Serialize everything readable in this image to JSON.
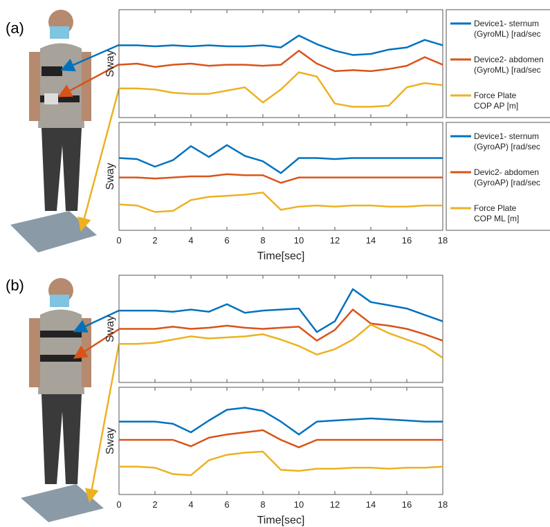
{
  "panel_labels": [
    "(a)",
    "(b)"
  ],
  "chart_data": [
    {
      "type": "line",
      "ylabel": "Sway",
      "x": [
        0,
        1,
        2,
        3,
        4,
        5,
        6,
        7,
        8,
        9,
        10,
        11,
        12,
        13,
        14,
        15,
        16,
        17,
        18
      ],
      "xlim": [
        0,
        18
      ],
      "ylim": [
        0,
        10
      ],
      "xticks": [
        0,
        2,
        4,
        6,
        8,
        10,
        12,
        14,
        16,
        18
      ],
      "xtick_labels": false,
      "series": [
        {
          "name": "Device1- sternum",
          "unit": "(GyroML) [rad/sec",
          "color": "#0072bd",
          "values": [
            6.7,
            6.7,
            6.6,
            6.7,
            6.6,
            6.7,
            6.6,
            6.6,
            6.7,
            6.5,
            7.6,
            6.8,
            6.2,
            5.8,
            5.9,
            6.3,
            6.5,
            7.2,
            6.7
          ]
        },
        {
          "name": "Device2- abdomen",
          "unit": "(GyroML) [rad/sec",
          "color": "#d95319",
          "values": [
            4.9,
            5.0,
            4.7,
            4.9,
            5.0,
            4.8,
            4.9,
            4.9,
            4.8,
            4.9,
            6.2,
            5.0,
            4.3,
            4.4,
            4.3,
            4.5,
            4.8,
            5.6,
            4.9
          ]
        },
        {
          "name": "Force Plate",
          "unit": "COP AP [m]",
          "color": "#edb120",
          "values": [
            2.7,
            2.7,
            2.6,
            2.3,
            2.2,
            2.2,
            2.5,
            2.8,
            1.4,
            2.6,
            4.2,
            3.8,
            1.3,
            1.0,
            1.0,
            1.1,
            2.8,
            3.2,
            3.0
          ]
        }
      ],
      "legend": true
    },
    {
      "type": "line",
      "ylabel": "Sway",
      "xlabel": "Time[sec]",
      "x": [
        0,
        1,
        2,
        3,
        4,
        5,
        6,
        7,
        8,
        9,
        10,
        11,
        12,
        13,
        14,
        15,
        16,
        17,
        18
      ],
      "xlim": [
        0,
        18
      ],
      "ylim": [
        0,
        10
      ],
      "xticks": [
        0,
        2,
        4,
        6,
        8,
        10,
        12,
        14,
        16,
        18
      ],
      "xtick_labels": true,
      "series": [
        {
          "name": "Device1- sternum",
          "unit": "(GyroAP) [rad/sec",
          "color": "#0072bd",
          "values": [
            6.7,
            6.6,
            5.9,
            6.5,
            7.8,
            6.8,
            7.9,
            6.9,
            6.4,
            5.3,
            6.7,
            6.7,
            6.6,
            6.7,
            6.7,
            6.7,
            6.7,
            6.7,
            6.7
          ]
        },
        {
          "name": "Devic2- abdomen",
          "unit": "(GyroAP) [rad/sec",
          "color": "#d95319",
          "values": [
            4.9,
            4.9,
            4.8,
            4.9,
            5.0,
            5.0,
            5.2,
            5.1,
            5.1,
            4.4,
            4.9,
            4.9,
            4.9,
            4.9,
            4.9,
            4.9,
            4.9,
            4.9,
            4.9
          ]
        },
        {
          "name": "Force Plate",
          "unit": "COP ML [m]",
          "color": "#edb120",
          "values": [
            2.4,
            2.3,
            1.7,
            1.8,
            2.8,
            3.1,
            3.2,
            3.3,
            3.5,
            1.9,
            2.2,
            2.3,
            2.2,
            2.3,
            2.3,
            2.2,
            2.2,
            2.3,
            2.3
          ]
        }
      ],
      "legend": true
    },
    {
      "type": "line",
      "ylabel": "Sway",
      "x": [
        0,
        1,
        2,
        3,
        4,
        5,
        6,
        7,
        8,
        9,
        10,
        11,
        12,
        13,
        14,
        15,
        16,
        17,
        18
      ],
      "xlim": [
        0,
        18
      ],
      "ylim": [
        0,
        10
      ],
      "xticks": [
        0,
        2,
        4,
        6,
        8,
        10,
        12,
        14,
        16,
        18
      ],
      "xtick_labels": false,
      "series": [
        {
          "color": "#0072bd",
          "values": [
            6.7,
            6.7,
            6.7,
            6.6,
            6.8,
            6.6,
            7.3,
            6.5,
            6.7,
            6.8,
            6.9,
            4.7,
            5.7,
            8.7,
            7.5,
            7.2,
            6.9,
            6.3,
            5.7
          ]
        },
        {
          "color": "#d95319",
          "values": [
            5.0,
            5.0,
            5.0,
            5.2,
            5.0,
            5.1,
            5.3,
            5.1,
            5.0,
            5.1,
            5.2,
            3.9,
            4.9,
            6.8,
            5.5,
            5.3,
            5.0,
            4.5,
            3.9
          ]
        },
        {
          "color": "#edb120",
          "values": [
            3.6,
            3.6,
            3.7,
            4.0,
            4.3,
            4.1,
            4.2,
            4.3,
            4.5,
            4.0,
            3.4,
            2.6,
            3.1,
            4.0,
            5.4,
            4.6,
            4.0,
            3.4,
            2.3
          ]
        }
      ],
      "legend": false
    },
    {
      "type": "line",
      "ylabel": "Sway",
      "xlabel": "Time[sec]",
      "x": [
        0,
        1,
        2,
        3,
        4,
        5,
        6,
        7,
        8,
        9,
        10,
        11,
        12,
        13,
        14,
        15,
        16,
        17,
        18
      ],
      "xlim": [
        0,
        18
      ],
      "ylim": [
        0,
        10
      ],
      "xticks": [
        0,
        2,
        4,
        6,
        8,
        10,
        12,
        14,
        16,
        18
      ],
      "xtick_labels": true,
      "series": [
        {
          "color": "#0072bd",
          "values": [
            6.8,
            6.8,
            6.8,
            6.6,
            5.8,
            6.9,
            7.9,
            8.1,
            7.8,
            6.8,
            5.6,
            6.8,
            6.9,
            7.0,
            7.1,
            7.0,
            6.9,
            6.8,
            6.8
          ]
        },
        {
          "color": "#d95319",
          "values": [
            5.1,
            5.1,
            5.1,
            5.1,
            4.5,
            5.3,
            5.6,
            5.8,
            6.0,
            5.1,
            4.4,
            5.1,
            5.1,
            5.1,
            5.1,
            5.1,
            5.1,
            5.1,
            5.1
          ]
        },
        {
          "color": "#edb120",
          "values": [
            2.6,
            2.6,
            2.5,
            1.9,
            1.8,
            3.2,
            3.7,
            3.9,
            4.0,
            2.3,
            2.2,
            2.4,
            2.4,
            2.5,
            2.5,
            2.4,
            2.5,
            2.5,
            2.6
          ]
        }
      ],
      "legend": false
    }
  ]
}
